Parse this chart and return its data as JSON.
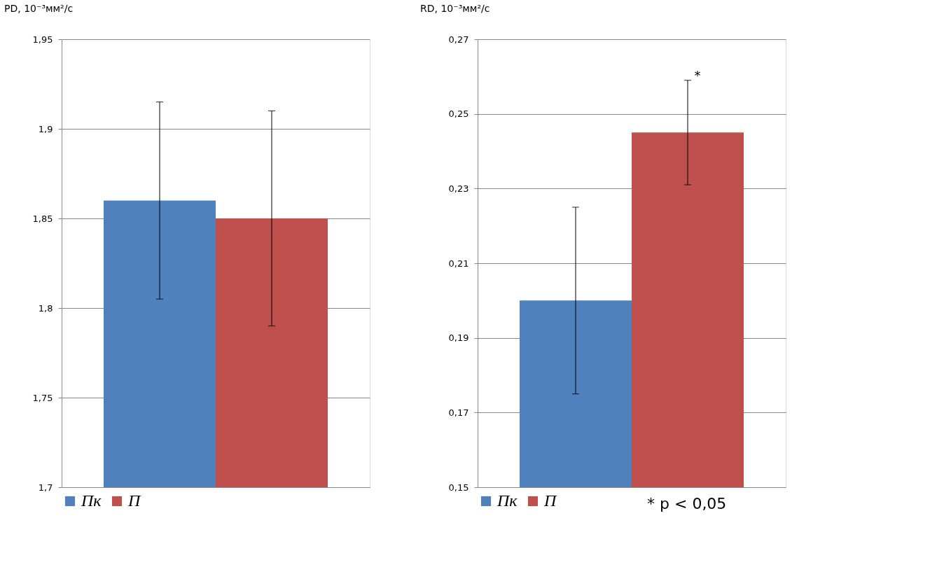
{
  "chart_data": [
    {
      "type": "bar",
      "title": "PD, 10⁻³мм²/с",
      "categories": [
        null
      ],
      "series": [
        {
          "name": "Пк",
          "color": "#4f81bd",
          "values": [
            1.86
          ],
          "errors": [
            [
              1.805,
              1.915
            ]
          ]
        },
        {
          "name": "П",
          "color": "#c0504d",
          "values": [
            1.85
          ],
          "errors": [
            [
              1.79,
              1.91
            ]
          ]
        }
      ],
      "ylim": [
        1.7,
        1.95
      ],
      "yticks": [
        {
          "value": 1.7,
          "label": "1,7"
        },
        {
          "value": 1.75,
          "label": "1,75"
        },
        {
          "value": 1.8,
          "label": "1,8"
        },
        {
          "value": 1.85,
          "label": "1,85"
        },
        {
          "value": 1.9,
          "label": "1,9"
        },
        {
          "value": 1.95,
          "label": "1,95"
        }
      ],
      "grid": "y",
      "legend": "bottom"
    },
    {
      "type": "bar",
      "title": "RD, 10⁻³мм²/с",
      "categories": [
        null
      ],
      "series": [
        {
          "name": "Пк",
          "color": "#4f81bd",
          "values": [
            0.2
          ],
          "errors": [
            [
              0.175,
              0.225
            ]
          ]
        },
        {
          "name": "П",
          "color": "#c0504d",
          "values": [
            0.245
          ],
          "errors": [
            [
              0.231,
              0.259
            ]
          ]
        }
      ],
      "ylim": [
        0.15,
        0.27
      ],
      "yticks": [
        {
          "value": 0.15,
          "label": "0,15"
        },
        {
          "value": 0.17,
          "label": "0,17"
        },
        {
          "value": 0.19,
          "label": "0,19"
        },
        {
          "value": 0.21,
          "label": "0,21"
        },
        {
          "value": 0.23,
          "label": "0,23"
        },
        {
          "value": 0.25,
          "label": "0,25"
        },
        {
          "value": 0.27,
          "label": "0,27"
        }
      ],
      "annotations": [
        "*",
        "* p < 0,05"
      ],
      "grid": "y",
      "legend": "bottom"
    }
  ]
}
